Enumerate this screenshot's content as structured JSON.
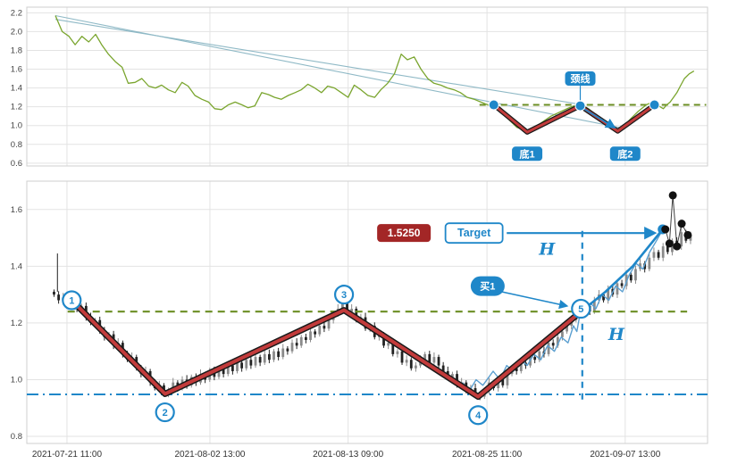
{
  "colors": {
    "line_green": "#7aa52e",
    "dash_green": "#6b8e23",
    "blue": "#1f87c9",
    "light_blue": "#5b9fd0",
    "trend": "#8fb9c6",
    "red": "#c23b3b",
    "red_edge": "#1a1a1a",
    "price_box_bg": "#a32626",
    "candle_up": "#8a8a8a",
    "candle_down": "#222222",
    "dot_black": "#111111",
    "grid": "#e3e3e3",
    "border": "#cfcfcf",
    "axis_text": "#444444",
    "xaxis_text": "#333333"
  },
  "chart_data": [
    {
      "id": "upper",
      "type": "line",
      "ylim": [
        0.57,
        2.26
      ],
      "yticks": [
        "2.2",
        "2.0",
        "1.8",
        "1.6",
        "1.4",
        "1.2",
        "1.0",
        "0.8",
        "0.6"
      ],
      "grid": true,
      "series": [
        {
          "name": "price-line",
          "points": [
            [
              0.042,
              2.17
            ],
            [
              0.052,
              2.0
            ],
            [
              0.062,
              1.95
            ],
            [
              0.071,
              1.86
            ],
            [
              0.081,
              1.95
            ],
            [
              0.091,
              1.89
            ],
            [
              0.101,
              1.97
            ],
            [
              0.11,
              1.86
            ],
            [
              0.12,
              1.76
            ],
            [
              0.13,
              1.68
            ],
            [
              0.14,
              1.62
            ],
            [
              0.149,
              1.45
            ],
            [
              0.159,
              1.46
            ],
            [
              0.169,
              1.5
            ],
            [
              0.179,
              1.42
            ],
            [
              0.189,
              1.4
            ],
            [
              0.198,
              1.43
            ],
            [
              0.208,
              1.38
            ],
            [
              0.218,
              1.35
            ],
            [
              0.228,
              1.46
            ],
            [
              0.237,
              1.42
            ],
            [
              0.247,
              1.32
            ],
            [
              0.257,
              1.28
            ],
            [
              0.267,
              1.25
            ],
            [
              0.276,
              1.18
            ],
            [
              0.286,
              1.17
            ],
            [
              0.296,
              1.22
            ],
            [
              0.306,
              1.25
            ],
            [
              0.316,
              1.22
            ],
            [
              0.325,
              1.19
            ],
            [
              0.335,
              1.21
            ],
            [
              0.345,
              1.35
            ],
            [
              0.355,
              1.33
            ],
            [
              0.364,
              1.3
            ],
            [
              0.374,
              1.28
            ],
            [
              0.384,
              1.32
            ],
            [
              0.394,
              1.35
            ],
            [
              0.403,
              1.38
            ],
            [
              0.413,
              1.44
            ],
            [
              0.423,
              1.4
            ],
            [
              0.433,
              1.35
            ],
            [
              0.442,
              1.42
            ],
            [
              0.452,
              1.4
            ],
            [
              0.462,
              1.35
            ],
            [
              0.472,
              1.3
            ],
            [
              0.481,
              1.43
            ],
            [
              0.491,
              1.38
            ],
            [
              0.501,
              1.32
            ],
            [
              0.511,
              1.3
            ],
            [
              0.52,
              1.38
            ],
            [
              0.53,
              1.45
            ],
            [
              0.54,
              1.55
            ],
            [
              0.55,
              1.76
            ],
            [
              0.559,
              1.7
            ],
            [
              0.569,
              1.73
            ],
            [
              0.579,
              1.6
            ],
            [
              0.589,
              1.5
            ],
            [
              0.598,
              1.45
            ],
            [
              0.608,
              1.43
            ],
            [
              0.618,
              1.4
            ],
            [
              0.628,
              1.38
            ],
            [
              0.637,
              1.35
            ],
            [
              0.647,
              1.3
            ],
            [
              0.657,
              1.28
            ],
            [
              0.667,
              1.25
            ],
            [
              0.677,
              1.22
            ],
            [
              0.69,
              1.18
            ],
            [
              0.7,
              1.12
            ],
            [
              0.71,
              1.05
            ],
            [
              0.72,
              0.98
            ],
            [
              0.735,
              0.94
            ],
            [
              0.75,
              1.0
            ],
            [
              0.76,
              1.05
            ],
            [
              0.77,
              1.1
            ],
            [
              0.785,
              1.15
            ],
            [
              0.8,
              1.2
            ],
            [
              0.813,
              1.23
            ],
            [
              0.825,
              1.18
            ],
            [
              0.835,
              1.12
            ],
            [
              0.845,
              1.05
            ],
            [
              0.855,
              1.0
            ],
            [
              0.868,
              0.96
            ],
            [
              0.878,
              1.0
            ],
            [
              0.888,
              1.08
            ],
            [
              0.898,
              1.15
            ],
            [
              0.91,
              1.22
            ],
            [
              0.922,
              1.26
            ],
            [
              0.93,
              1.2
            ],
            [
              0.935,
              1.18
            ],
            [
              0.94,
              1.22
            ],
            [
              0.945,
              1.25
            ],
            [
              0.95,
              1.3
            ],
            [
              0.955,
              1.35
            ],
            [
              0.96,
              1.42
            ],
            [
              0.966,
              1.5
            ],
            [
              0.973,
              1.55
            ],
            [
              0.98,
              1.58
            ]
          ]
        }
      ],
      "trendlines": [
        {
          "from": [
            0.042,
            2.17
          ],
          "to": [
            0.87,
            0.98
          ]
        },
        {
          "from": [
            0.042,
            2.13
          ],
          "to": [
            0.818,
            1.22
          ]
        }
      ],
      "zigzag": [
        [
          0.686,
          1.22
        ],
        [
          0.735,
          0.93
        ],
        [
          0.813,
          1.21
        ],
        [
          0.868,
          0.94
        ],
        [
          0.922,
          1.22
        ]
      ],
      "neckline": {
        "value": 1.22,
        "from": 0.665,
        "to": 0.998
      },
      "markers": [
        [
          0.686,
          1.22
        ],
        [
          0.813,
          1.21
        ],
        [
          0.922,
          1.22
        ]
      ],
      "fall_arrow": {
        "from": [
          0.818,
          1.18
        ],
        "to": [
          0.863,
          0.98
        ]
      },
      "labels": [
        {
          "id": "bottom1-label",
          "text": "底1",
          "t": 0.735,
          "v": 0.7
        },
        {
          "id": "neckline-label",
          "text": "颈线",
          "t": 0.813,
          "v": 1.5,
          "connector_to_v": 1.27
        },
        {
          "id": "bottom2-label",
          "text": "底2",
          "t": 0.879,
          "v": 0.7
        }
      ]
    },
    {
      "id": "lower",
      "type": "candlestick",
      "ylim": [
        0.775,
        1.7
      ],
      "yticks": [
        "1.6",
        "1.4",
        "1.2",
        "1.0",
        "0.8"
      ],
      "xticks": [
        {
          "label": "2021-07-21 11:00",
          "t": 0.059
        },
        {
          "label": "2021-08-02 13:00",
          "t": 0.269
        },
        {
          "label": "2021-08-13 09:00",
          "t": 0.472
        },
        {
          "label": "2021-08-25 11:00",
          "t": 0.676
        },
        {
          "label": "2021-09-07 13:00",
          "t": 0.879
        }
      ],
      "candles_span": [
        0.04,
        0.975
      ],
      "closes": [
        1.3,
        1.28,
        1.29,
        1.27,
        1.28,
        1.25,
        1.26,
        1.22,
        1.2,
        1.21,
        1.17,
        1.15,
        1.16,
        1.12,
        1.13,
        1.09,
        1.07,
        1.08,
        1.04,
        1.02,
        1.03,
        0.99,
        0.97,
        0.98,
        0.95,
        0.96,
        0.99,
        0.97,
        1.0,
        0.98,
        1.01,
        0.99,
        1.02,
        1.0,
        1.03,
        1.01,
        1.04,
        1.02,
        1.05,
        1.03,
        1.06,
        1.04,
        1.07,
        1.05,
        1.08,
        1.06,
        1.09,
        1.07,
        1.1,
        1.08,
        1.11,
        1.1,
        1.13,
        1.12,
        1.15,
        1.14,
        1.17,
        1.16,
        1.19,
        1.18,
        1.21,
        1.23,
        1.25,
        1.27,
        1.24,
        1.25,
        1.21,
        1.22,
        1.18,
        1.19,
        1.15,
        1.16,
        1.12,
        1.13,
        1.09,
        1.1,
        1.06,
        1.07,
        1.04,
        1.05,
        1.07,
        1.09,
        1.06,
        1.08,
        1.05,
        1.03,
        1.01,
        1.02,
        0.98,
        0.99,
        0.96,
        0.97,
        0.95,
        0.94,
        0.96,
        0.99,
        0.97,
        1.0,
        0.98,
        1.02,
        1.04,
        1.03,
        1.06,
        1.05,
        1.08,
        1.07,
        1.1,
        1.09,
        1.13,
        1.12,
        1.15,
        1.17,
        1.19,
        1.21,
        1.23,
        1.24,
        1.26,
        1.24,
        1.28,
        1.3,
        1.28,
        1.32,
        1.3,
        1.34,
        1.33,
        1.37,
        1.35,
        1.39,
        1.41,
        1.39,
        1.43,
        1.45,
        1.43,
        1.47,
        1.45,
        1.49,
        1.47,
        1.52,
        1.49,
        1.51
      ],
      "left_spike": {
        "t": 0.045,
        "from": 1.31,
        "to": 1.445
      },
      "zigzag": [
        [
          0.066,
          1.28
        ],
        [
          0.203,
          0.95
        ],
        [
          0.466,
          1.245
        ],
        [
          0.663,
          0.94
        ],
        [
          0.814,
          1.24
        ]
      ],
      "point_labels": [
        {
          "n": "1",
          "t": 0.066,
          "v": 1.28
        },
        {
          "n": "2",
          "t": 0.203,
          "v": 0.885
        },
        {
          "n": "3",
          "t": 0.466,
          "v": 1.3
        },
        {
          "n": "4",
          "t": 0.663,
          "v": 0.875
        },
        {
          "n": "5",
          "t": 0.814,
          "v": 1.25
        }
      ],
      "neckline": {
        "value": 1.24,
        "from": 0.06,
        "to": 0.97
      },
      "support": {
        "value": 0.948,
        "from": 0.0,
        "to": 1.0
      },
      "vline": {
        "t": 0.816,
        "from": 0.93,
        "to": 1.525
      },
      "rally": {
        "points": [
          [
            0.814,
            1.24
          ],
          [
            0.85,
            1.31
          ],
          [
            0.89,
            1.4
          ],
          [
            0.934,
            1.53
          ]
        ],
        "end_marker": [
          0.934,
          1.53
        ]
      },
      "overlay": [
        [
          0.64,
          0.99
        ],
        [
          0.65,
          0.96
        ],
        [
          0.66,
          1.0
        ],
        [
          0.67,
          0.98
        ],
        [
          0.685,
          1.03
        ],
        [
          0.695,
          1.0
        ],
        [
          0.705,
          1.05
        ],
        [
          0.715,
          1.03
        ],
        [
          0.725,
          1.07
        ],
        [
          0.735,
          1.05
        ],
        [
          0.745,
          1.09
        ],
        [
          0.755,
          1.07
        ],
        [
          0.765,
          1.12
        ],
        [
          0.775,
          1.1
        ],
        [
          0.785,
          1.15
        ],
        [
          0.795,
          1.13
        ],
        [
          0.803,
          1.19
        ],
        [
          0.808,
          1.17
        ],
        [
          0.814,
          1.25
        ],
        [
          0.82,
          1.22
        ],
        [
          0.828,
          1.27
        ],
        [
          0.836,
          1.25
        ],
        [
          0.845,
          1.3
        ],
        [
          0.855,
          1.28
        ],
        [
          0.865,
          1.33
        ],
        [
          0.875,
          1.31
        ],
        [
          0.885,
          1.37
        ],
        [
          0.895,
          1.41
        ],
        [
          0.905,
          1.39
        ],
        [
          0.915,
          1.45
        ],
        [
          0.925,
          1.49
        ],
        [
          0.932,
          1.52
        ]
      ],
      "buy_label": {
        "text": "买1",
        "t": 0.677,
        "v": 1.33,
        "arrow_to": [
          0.793,
          1.26
        ]
      },
      "price_label": {
        "text": "1.5250",
        "t": 0.554,
        "v": 1.517
      },
      "target_label": {
        "text": "Target",
        "t": 0.657,
        "v": 1.517
      },
      "target_arrow": {
        "from": [
          0.705,
          1.517
        ],
        "to": [
          0.922,
          1.517
        ]
      },
      "h_labels": [
        {
          "text": "H",
          "t": 0.764,
          "v": 1.44
        },
        {
          "text": "H",
          "t": 0.866,
          "v": 1.14
        }
      ],
      "end_dots": [
        [
          0.938,
          1.53
        ],
        [
          0.944,
          1.48
        ],
        [
          0.949,
          1.65
        ],
        [
          0.955,
          1.47
        ],
        [
          0.962,
          1.55
        ],
        [
          0.971,
          1.51
        ]
      ]
    }
  ]
}
